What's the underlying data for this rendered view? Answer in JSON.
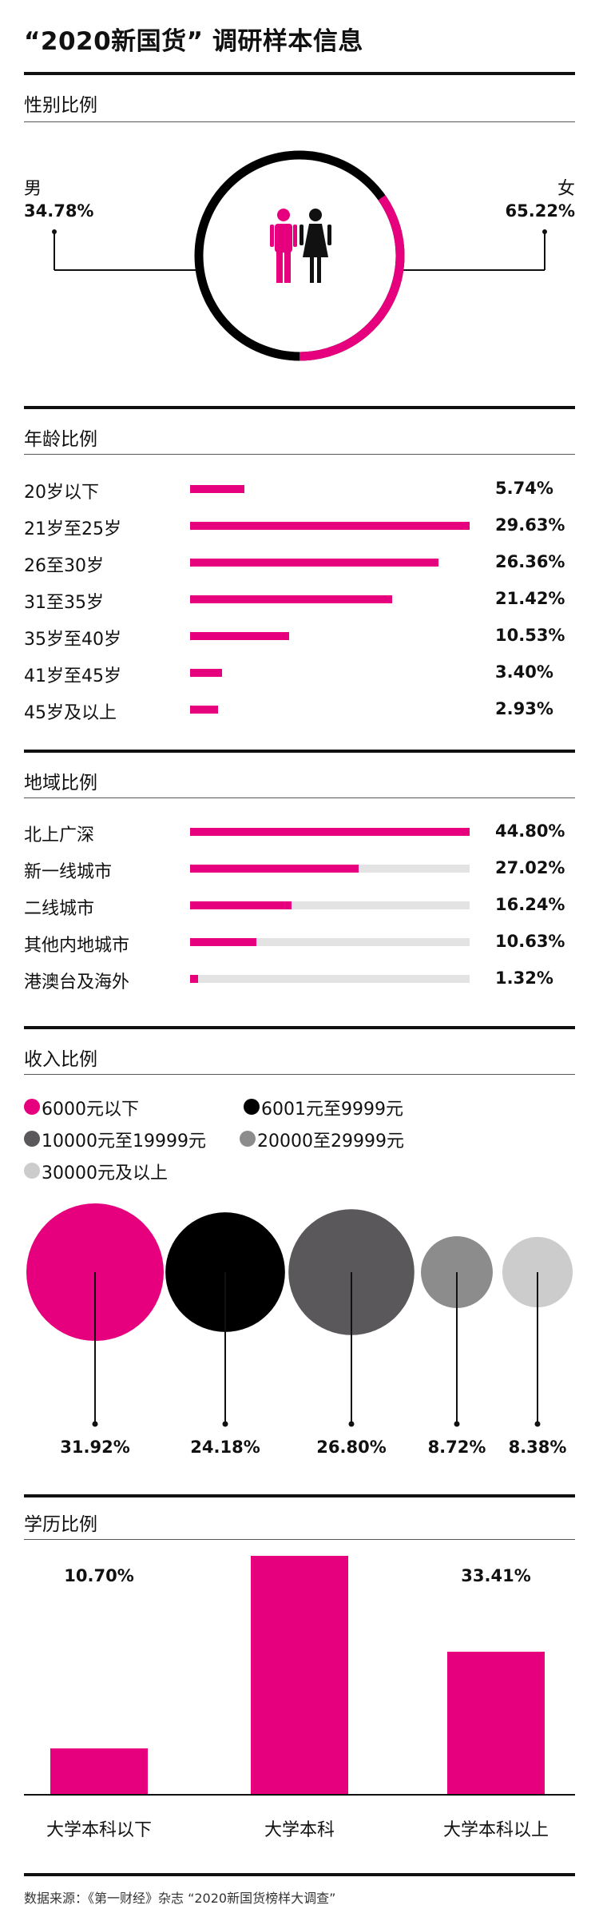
{
  "title": "“2020新国货” 调研样本信息",
  "colors": {
    "accent": "#e6007e",
    "black": "#000000",
    "dark_gray": "#5a585a",
    "mid_gray": "#8c8c8c",
    "light_gray": "#cccccc",
    "track": "#e3e3e3"
  },
  "gender": {
    "heading": "性别比例",
    "male_label": "男",
    "male_pct": "34.78%",
    "female_label": "女",
    "female_pct": "65.22%"
  },
  "age": {
    "heading": "年龄比例",
    "rows": [
      {
        "label": "20岁以下",
        "pct": "5.74%",
        "value": 5.74
      },
      {
        "label": "21岁至25岁",
        "pct": "29.63%",
        "value": 29.63
      },
      {
        "label": "26至30岁",
        "pct": "26.36%",
        "value": 26.36
      },
      {
        "label": "31至35岁",
        "pct": "21.42%",
        "value": 21.42
      },
      {
        "label": "35岁至40岁",
        "pct": "10.53%",
        "value": 10.53
      },
      {
        "label": "41岁至45岁",
        "pct": "3.40%",
        "value": 3.4
      },
      {
        "label": "45岁及以上",
        "pct": "2.93%",
        "value": 2.93
      }
    ]
  },
  "region": {
    "heading": "地域比例",
    "rows": [
      {
        "label": "北上广深",
        "pct": "44.80%",
        "value": 44.8
      },
      {
        "label": "新一线城市",
        "pct": "27.02%",
        "value": 27.02
      },
      {
        "label": "二线城市",
        "pct": "16.24%",
        "value": 16.24
      },
      {
        "label": "其他内地城市",
        "pct": "10.63%",
        "value": 10.63
      },
      {
        "label": "港澳台及海外",
        "pct": "1.32%",
        "value": 1.32
      }
    ]
  },
  "income": {
    "heading": "收入比例",
    "legend": [
      {
        "label": "6000元以下",
        "color": "#e6007e"
      },
      {
        "label": "6001元至9999元",
        "color": "#000000"
      },
      {
        "label": "10000元至19999元",
        "color": "#5a585a"
      },
      {
        "label": "20000至29999元",
        "color": "#8c8c8c"
      },
      {
        "label": "30000元及以上",
        "color": "#cccccc"
      }
    ],
    "items": [
      {
        "pct": "31.92%",
        "value": 31.92,
        "color": "#e6007e"
      },
      {
        "pct": "24.18%",
        "value": 24.18,
        "color": "#000000"
      },
      {
        "pct": "26.80%",
        "value": 26.8,
        "color": "#5a585a"
      },
      {
        "pct": "8.72%",
        "value": 8.72,
        "color": "#8c8c8c"
      },
      {
        "pct": "8.38%",
        "value": 8.38,
        "color": "#cccccc"
      }
    ]
  },
  "education": {
    "heading": "学历比例",
    "bars": [
      {
        "label": "大学本科以下",
        "pct": "10.70%",
        "value": 10.7
      },
      {
        "label": "大学本科",
        "pct": "55.89%",
        "value": 55.89
      },
      {
        "label": "大学本科以上",
        "pct": "33.41%",
        "value": 33.41
      }
    ]
  },
  "source": "数据来源：《第一财经》杂志 “2020新国货榜样大调查”",
  "chart_data": [
    {
      "type": "pie",
      "categories": [
        "男",
        "女"
      ],
      "values": [
        34.78,
        65.22
      ]
    },
    {
      "type": "bar",
      "categories": [
        "20岁以下",
        "21岁至25岁",
        "26至30岁",
        "31至35岁",
        "35岁至40岁",
        "41岁至45岁",
        "45岁及以上"
      ],
      "values": [
        5.74,
        29.63,
        26.36,
        21.42,
        10.53,
        3.4,
        2.93
      ]
    },
    {
      "type": "bar",
      "categories": [
        "北上广深",
        "新一线城市",
        "二线城市",
        "其他内地城市",
        "港澳台及海外"
      ],
      "values": [
        44.8,
        27.02,
        16.24,
        10.63,
        1.32
      ]
    },
    {
      "type": "scatter",
      "categories": [
        "6000元以下",
        "6001元至9999元",
        "10000元至19999元",
        "20000至29999元",
        "30000元及以上"
      ],
      "values": [
        31.92,
        24.18,
        26.8,
        8.72,
        8.38
      ]
    },
    {
      "type": "bar",
      "categories": [
        "大学本科以下",
        "大学本科",
        "大学本科以上"
      ],
      "values": [
        10.7,
        55.89,
        33.41
      ]
    }
  ]
}
